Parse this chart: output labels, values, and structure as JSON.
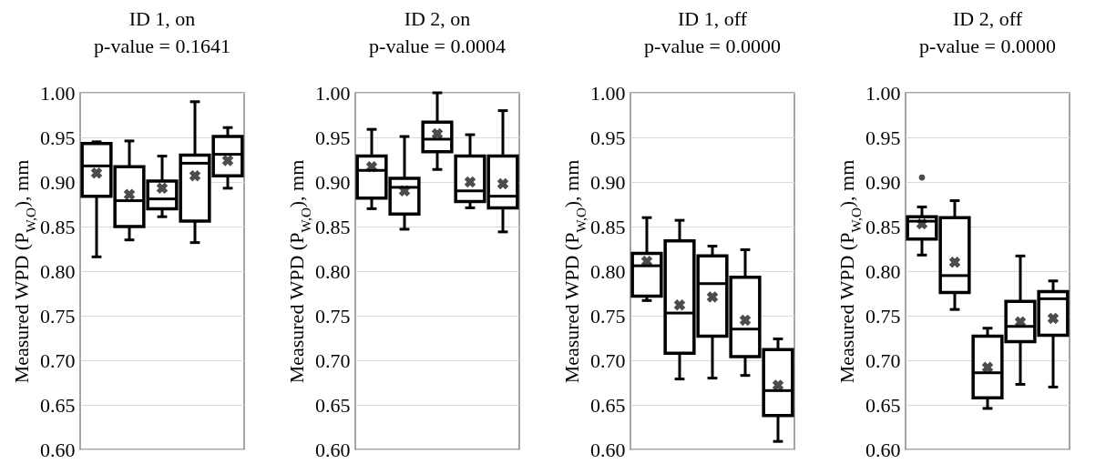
{
  "chart_data": [
    {
      "type": "box",
      "title": "ID 1, on",
      "subtitle": "p-value = 0.1641",
      "ylabel": "Measured WPD (P$_{W,O}$), mm",
      "categories": [
        null,
        null,
        null,
        null,
        null
      ],
      "ylim": [
        0.6,
        1.0
      ],
      "yticks": [
        {
          "value": 0.6,
          "label": "0.60"
        },
        0.65,
        {
          "value": 0.7,
          "label": "0.70"
        },
        0.75,
        {
          "value": 0.8,
          "label": "0.80"
        },
        0.85,
        {
          "value": 0.9,
          "label": "0.90"
        },
        0.95,
        {
          "value": 1.0,
          "label": "1.00"
        }
      ],
      "grid": "y",
      "boxes": [
        {
          "low": 0.816,
          "q1": 0.884,
          "median": 0.918,
          "q3": 0.943,
          "high": 0.945,
          "mean": 0.91
        },
        {
          "low": 0.835,
          "q1": 0.85,
          "median": 0.879,
          "q3": 0.917,
          "high": 0.946,
          "mean": 0.886
        },
        {
          "low": 0.861,
          "q1": 0.87,
          "median": 0.881,
          "q3": 0.901,
          "high": 0.929,
          "mean": 0.893
        },
        {
          "low": 0.832,
          "q1": 0.856,
          "median": 0.921,
          "q3": 0.93,
          "high": 0.99,
          "mean": 0.907
        },
        {
          "low": 0.893,
          "q1": 0.907,
          "median": 0.931,
          "q3": 0.951,
          "high": 0.961,
          "mean": 0.924
        }
      ]
    },
    {
      "type": "box",
      "title": "ID 2, on",
      "subtitle": "p-value = 0.0004",
      "ylabel": "Measured WPD (P$_{W,O}$), mm",
      "categories": [
        null,
        null,
        null,
        null,
        null
      ],
      "ylim": [
        0.6,
        1.0
      ],
      "yticks": [
        {
          "value": 0.6,
          "label": "0.60"
        },
        0.65,
        {
          "value": 0.7,
          "label": "0.70"
        },
        0.75,
        {
          "value": 0.8,
          "label": "0.80"
        },
        0.85,
        {
          "value": 0.9,
          "label": "0.90"
        },
        0.95,
        {
          "value": 1.0,
          "label": "1.00"
        }
      ],
      "grid": "y",
      "boxes": [
        {
          "low": 0.87,
          "q1": 0.882,
          "median": 0.913,
          "q3": 0.929,
          "high": 0.959,
          "mean": 0.917
        },
        {
          "low": 0.847,
          "q1": 0.864,
          "median": 0.894,
          "q3": 0.904,
          "high": 0.951,
          "mean": 0.89
        },
        {
          "low": 0.914,
          "q1": 0.934,
          "median": 0.948,
          "q3": 0.967,
          "high": 1.0,
          "mean": 0.954
        },
        {
          "low": 0.871,
          "q1": 0.878,
          "median": 0.89,
          "q3": 0.929,
          "high": 0.953,
          "mean": 0.9
        },
        {
          "low": 0.844,
          "q1": 0.871,
          "median": 0.884,
          "q3": 0.929,
          "high": 0.98,
          "mean": 0.898
        }
      ]
    },
    {
      "type": "box",
      "title": "ID 1, off",
      "subtitle": "p-value = 0.0000",
      "ylabel": "Measured WPD (P$_{W,O}$), mm",
      "categories": [
        null,
        null,
        null,
        null,
        null
      ],
      "ylim": [
        0.6,
        1.0
      ],
      "yticks": [
        {
          "value": 0.6,
          "label": "0.60"
        },
        0.65,
        {
          "value": 0.7,
          "label": "0.70"
        },
        0.75,
        {
          "value": 0.8,
          "label": "0.80"
        },
        0.85,
        {
          "value": 0.9,
          "label": "0.90"
        },
        0.95,
        {
          "value": 1.0,
          "label": "1.00"
        }
      ],
      "grid": "y",
      "boxes": [
        {
          "low": 0.767,
          "q1": 0.772,
          "median": 0.806,
          "q3": 0.82,
          "high": 0.86,
          "mean": 0.811
        },
        {
          "low": 0.679,
          "q1": 0.708,
          "median": 0.753,
          "q3": 0.834,
          "high": 0.857,
          "mean": 0.762
        },
        {
          "low": 0.68,
          "q1": 0.727,
          "median": 0.786,
          "q3": 0.817,
          "high": 0.828,
          "mean": 0.771
        },
        {
          "low": 0.683,
          "q1": 0.704,
          "median": 0.735,
          "q3": 0.793,
          "high": 0.824,
          "mean": 0.745
        },
        {
          "low": 0.609,
          "q1": 0.638,
          "median": 0.666,
          "q3": 0.712,
          "high": 0.724,
          "mean": 0.672
        }
      ]
    },
    {
      "type": "box",
      "title": "ID 2, off",
      "subtitle": "p-value = 0.0000",
      "ylabel": "Measured WPD (P$_{W,O}$), mm",
      "categories": [
        null,
        null,
        null,
        null,
        null
      ],
      "ylim": [
        0.6,
        1.0
      ],
      "yticks": [
        {
          "value": 0.6,
          "label": "0.60"
        },
        0.65,
        {
          "value": 0.7,
          "label": "0.70"
        },
        0.75,
        {
          "value": 0.8,
          "label": "0.80"
        },
        0.85,
        {
          "value": 0.9,
          "label": "0.90"
        },
        0.95,
        {
          "value": 1.0,
          "label": "1.00"
        }
      ],
      "grid": "y",
      "boxes": [
        {
          "low": 0.818,
          "q1": 0.836,
          "median": 0.856,
          "q3": 0.861,
          "high": 0.872,
          "mean": 0.853,
          "outliers": [
            0.905
          ]
        },
        {
          "low": 0.757,
          "q1": 0.776,
          "median": 0.795,
          "q3": 0.86,
          "high": 0.879,
          "mean": 0.81
        },
        {
          "low": 0.646,
          "q1": 0.658,
          "median": 0.686,
          "q3": 0.727,
          "high": 0.736,
          "mean": 0.692
        },
        {
          "low": 0.673,
          "q1": 0.721,
          "median": 0.738,
          "q3": 0.766,
          "high": 0.817,
          "mean": 0.743
        },
        {
          "low": 0.67,
          "q1": 0.728,
          "median": 0.769,
          "q3": 0.777,
          "high": 0.789,
          "mean": 0.747
        }
      ]
    }
  ]
}
